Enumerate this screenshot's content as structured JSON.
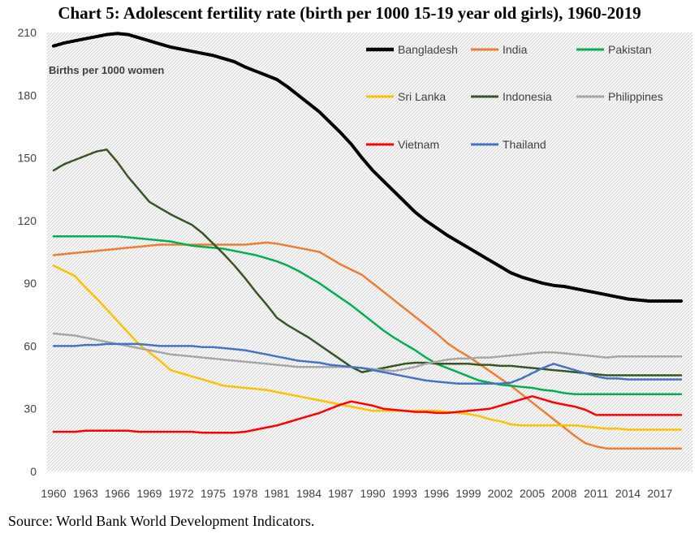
{
  "chart_data": {
    "type": "line",
    "title": "Chart 5: Adolescent fertility rate (birth per 1000 15-19 year old girls), 1960-2019",
    "ylabel": "Births per 1000 women",
    "xlabel": "",
    "ylim": [
      0,
      210
    ],
    "yticks": [
      0,
      30,
      60,
      90,
      120,
      150,
      180,
      210
    ],
    "xticks": [
      1960,
      1963,
      1966,
      1969,
      1972,
      1975,
      1978,
      1981,
      1984,
      1987,
      1990,
      1993,
      1996,
      1999,
      2002,
      2005,
      2008,
      2011,
      2014,
      2017
    ],
    "xlim": [
      1960,
      2019
    ],
    "background": "diagonal hatch",
    "grid": false,
    "legend_position": "top-right, inside plot, 3 columns",
    "x": [
      1960,
      1961,
      1962,
      1963,
      1964,
      1965,
      1966,
      1967,
      1968,
      1969,
      1970,
      1971,
      1972,
      1973,
      1974,
      1975,
      1976,
      1977,
      1978,
      1979,
      1980,
      1981,
      1982,
      1983,
      1984,
      1985,
      1986,
      1987,
      1988,
      1989,
      1990,
      1991,
      1992,
      1993,
      1994,
      1995,
      1996,
      1997,
      1998,
      1999,
      2000,
      2001,
      2002,
      2003,
      2004,
      2005,
      2006,
      2007,
      2008,
      2009,
      2010,
      2011,
      2012,
      2013,
      2014,
      2015,
      2016,
      2017,
      2018,
      2019
    ],
    "series": [
      {
        "name": "Bangladesh",
        "color": "#000000",
        "width": 4,
        "values": [
          203.5,
          205,
          206,
          207,
          208,
          209,
          209.5,
          209,
          207.5,
          206,
          204.5,
          203,
          202,
          201,
          200,
          199,
          197.5,
          196,
          193.5,
          191.5,
          189.5,
          187.5,
          184,
          180,
          176,
          172,
          167,
          162,
          156.5,
          150,
          144,
          139,
          134,
          129,
          124,
          120,
          116.5,
          113,
          110,
          107,
          104,
          101,
          98,
          95,
          93,
          91.5,
          90,
          89,
          88.5,
          87.5,
          86.5,
          85.5,
          84.5,
          83.5,
          82.5,
          82,
          81.5,
          81.5,
          81.5,
          81.5
        ]
      },
      {
        "name": "India",
        "color": "#ED7D31",
        "width": 2.5,
        "values": [
          103.5,
          104,
          104.5,
          105,
          105.5,
          106,
          106.5,
          107,
          107.5,
          108,
          108.5,
          108.5,
          108.5,
          108.5,
          108.5,
          108.5,
          108.5,
          108.5,
          108.5,
          109,
          109.5,
          109,
          108,
          107,
          106,
          105,
          102,
          99,
          96.5,
          94,
          90,
          86,
          82,
          78,
          74,
          70,
          66,
          61.5,
          58,
          55,
          51.5,
          48,
          44.5,
          41,
          37,
          33,
          29,
          25,
          21,
          17,
          13.5,
          12,
          11,
          11,
          11,
          11,
          11,
          11,
          11,
          11
        ]
      },
      {
        "name": "Pakistan",
        "color": "#00B050",
        "width": 2.5,
        "values": [
          112.5,
          112.5,
          112.5,
          112.5,
          112.5,
          112.5,
          112.5,
          112,
          111.5,
          111,
          110.5,
          110,
          109,
          108,
          107.5,
          107,
          106.5,
          105.5,
          104.5,
          103.5,
          102,
          100.5,
          98.5,
          96,
          93,
          90,
          86.5,
          83,
          79.5,
          75.5,
          71.5,
          67.5,
          64,
          61,
          58,
          54.5,
          51.5,
          49.5,
          47.5,
          45.5,
          43.5,
          42.5,
          41.5,
          41,
          40.5,
          40,
          39,
          38.5,
          37.5,
          37,
          37,
          37,
          37,
          37,
          37,
          37,
          37,
          37,
          37,
          37
        ]
      },
      {
        "name": "Sri Lanka",
        "color": "#FFC000",
        "width": 2.5,
        "values": [
          98.5,
          96,
          93.5,
          88,
          83,
          77.5,
          72,
          66.5,
          61,
          57,
          53,
          48.5,
          47,
          45.5,
          44,
          42.5,
          41,
          40.5,
          40,
          39.5,
          39,
          38,
          37,
          36,
          35,
          34,
          33,
          32,
          31,
          30,
          29,
          29,
          29,
          29,
          29,
          29,
          29,
          28.5,
          28,
          27.5,
          26.5,
          25,
          24,
          22.5,
          22,
          22,
          22,
          22,
          22,
          22,
          21.5,
          21,
          20.5,
          20.5,
          20,
          20,
          20,
          20,
          20,
          20
        ]
      },
      {
        "name": "Indonesia",
        "color": "#375623",
        "width": 2.5,
        "values": [
          144,
          147,
          149,
          151,
          153,
          154,
          148,
          141,
          135,
          129,
          126,
          123,
          120.5,
          118,
          114,
          109,
          104,
          98.5,
          92.5,
          86,
          80,
          73.5,
          70,
          67,
          64,
          60.5,
          57,
          53.5,
          50,
          47.5,
          48.5,
          49.5,
          50.5,
          51.5,
          52,
          52,
          51.5,
          51.5,
          51.5,
          51.5,
          51,
          51,
          50.5,
          50.5,
          50,
          49.5,
          49,
          48.5,
          48,
          47.5,
          47,
          46.5,
          46,
          46,
          46,
          46,
          46,
          46,
          46,
          46
        ]
      },
      {
        "name": "Philippines",
        "color": "#A6A6A6",
        "width": 2.5,
        "values": [
          66,
          65.5,
          65,
          64,
          63,
          62,
          61,
          60,
          59,
          58,
          57,
          56,
          55.5,
          55,
          54.5,
          54,
          53.5,
          53,
          52.5,
          52,
          51.5,
          51,
          50.5,
          50,
          50,
          50,
          50,
          50,
          50,
          49.5,
          49,
          48.5,
          48,
          49,
          50,
          51.5,
          52.5,
          53.5,
          54,
          54,
          54.5,
          54.5,
          55,
          55.5,
          56,
          56.5,
          57,
          57,
          56.5,
          56,
          55.5,
          55,
          54.5,
          55,
          55,
          55,
          55,
          55,
          55,
          55
        ]
      },
      {
        "name": "Vietnam",
        "color": "#FF0000",
        "width": 2.5,
        "values": [
          19,
          19,
          19,
          19.5,
          19.5,
          19.5,
          19.5,
          19.5,
          19,
          19,
          19,
          19,
          19,
          19,
          18.5,
          18.5,
          18.5,
          18.5,
          19,
          20,
          21,
          22,
          23.5,
          25,
          26.5,
          28,
          30,
          32,
          33.5,
          32.5,
          31.5,
          30,
          29.5,
          29,
          28.5,
          28.5,
          28,
          28,
          28.5,
          29,
          29.5,
          30,
          31.5,
          33,
          34.5,
          36,
          34.5,
          33,
          32,
          31,
          29.5,
          27,
          27,
          27,
          27,
          27,
          27,
          27,
          27,
          27
        ]
      },
      {
        "name": "Thailand",
        "color": "#4472C4",
        "width": 2.5,
        "values": [
          60,
          60,
          60,
          60.5,
          60.5,
          61,
          61,
          61,
          61,
          60.5,
          60,
          60,
          60,
          60,
          59.5,
          59.5,
          59,
          58.5,
          58,
          57,
          56,
          55,
          54,
          53,
          52.5,
          52,
          51,
          50.5,
          50,
          49.5,
          48.5,
          47.5,
          46.5,
          45.5,
          44.5,
          43.5,
          43,
          42.5,
          42,
          42,
          42,
          42,
          42,
          42.5,
          44.5,
          47,
          49.5,
          51.5,
          50,
          48.5,
          47,
          45.5,
          44.5,
          44.5,
          44,
          44,
          44,
          44,
          44,
          44
        ]
      }
    ]
  },
  "source": "Source: World Bank World Development Indicators."
}
